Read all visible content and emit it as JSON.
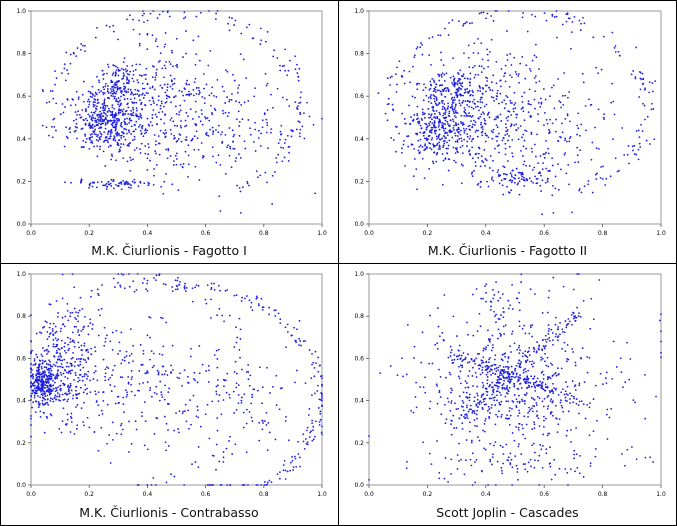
{
  "colors": {
    "points": "#1f1fe0",
    "border": "#000000",
    "plot_frame": "#9a9a9a",
    "background": "#ffffff"
  },
  "chart_data": [
    {
      "type": "scatter",
      "title": "M.K. Čiurlionis - Fagotto I",
      "xlim": [
        0,
        1
      ],
      "ylim": [
        0,
        1
      ],
      "x_ticks": [
        "0.0",
        "0.2",
        "0.4",
        "0.6",
        "0.8",
        "1.0"
      ],
      "y_ticks": [
        "0.0",
        "0.2",
        "0.4",
        "0.6",
        "0.8",
        "1.0"
      ],
      "grid": false,
      "series": [
        {
          "points": []
        }
      ],
      "clusters": [
        {
          "cx": 0.26,
          "cy": 0.48,
          "sx": 0.06,
          "sy": 0.07,
          "n": 420
        },
        {
          "cx": 0.3,
          "cy": 0.65,
          "sx": 0.05,
          "sy": 0.05,
          "n": 150
        },
        {
          "cx": 0.45,
          "cy": 0.55,
          "sx": 0.1,
          "sy": 0.16,
          "n": 330
        },
        {
          "cx": 0.28,
          "cy": 0.19,
          "sx": 0.06,
          "sy": 0.012,
          "n": 70
        },
        {
          "cx": 0.7,
          "cy": 0.45,
          "sx": 0.13,
          "sy": 0.15,
          "n": 170
        }
      ],
      "arcs": [
        {
          "cx": 0.5,
          "cy": 0.55,
          "rx": 0.42,
          "ry": 0.44,
          "t0": -60,
          "t1": 200,
          "n": 150,
          "noise": 0.02
        }
      ]
    },
    {
      "type": "scatter",
      "title": "M.K. Čiurlionis - Fagotto II",
      "xlim": [
        0,
        1
      ],
      "ylim": [
        0,
        1
      ],
      "x_ticks": [
        "0.0",
        "0.2",
        "0.4",
        "0.6",
        "0.8",
        "1.0"
      ],
      "y_ticks": [
        "0.0",
        "0.2",
        "0.4",
        "0.6",
        "0.8",
        "1.0"
      ],
      "grid": false,
      "series": [
        {
          "points": []
        }
      ],
      "clusters": [
        {
          "cx": 0.24,
          "cy": 0.45,
          "sx": 0.06,
          "sy": 0.09,
          "n": 380
        },
        {
          "cx": 0.28,
          "cy": 0.63,
          "sx": 0.05,
          "sy": 0.05,
          "n": 140
        },
        {
          "cx": 0.42,
          "cy": 0.55,
          "sx": 0.09,
          "sy": 0.15,
          "n": 320
        },
        {
          "cx": 0.48,
          "cy": 0.22,
          "sx": 0.07,
          "sy": 0.03,
          "n": 90
        },
        {
          "cx": 0.65,
          "cy": 0.45,
          "sx": 0.12,
          "sy": 0.15,
          "n": 150
        }
      ],
      "arcs": [
        {
          "cx": 0.52,
          "cy": 0.55,
          "rx": 0.44,
          "ry": 0.44,
          "t0": -70,
          "t1": 190,
          "n": 160,
          "noise": 0.02
        }
      ]
    },
    {
      "type": "scatter",
      "title": "M.K. Čiurlionis - Contrabasso",
      "xlim": [
        0,
        1
      ],
      "ylim": [
        0,
        1
      ],
      "x_ticks": [
        "0.0",
        "0.2",
        "0.4",
        "0.6",
        "0.8",
        "1.0"
      ],
      "y_ticks": [
        "0.0",
        "0.2",
        "0.4",
        "0.6",
        "0.8",
        "1.0"
      ],
      "grid": false,
      "series": [
        {
          "points": []
        }
      ],
      "clusters": [
        {
          "cx": 0.04,
          "cy": 0.48,
          "sx": 0.025,
          "sy": 0.06,
          "n": 300
        },
        {
          "cx": 0.12,
          "cy": 0.55,
          "sx": 0.06,
          "sy": 0.15,
          "n": 300
        },
        {
          "cx": 0.35,
          "cy": 0.5,
          "sx": 0.14,
          "sy": 0.16,
          "n": 240
        },
        {
          "cx": 0.7,
          "cy": 0.4,
          "sx": 0.15,
          "sy": 0.12,
          "n": 120
        }
      ],
      "arcs": [
        {
          "cx": 0.52,
          "cy": 0.42,
          "rx": 0.48,
          "ry": 0.52,
          "t0": -80,
          "t1": 100,
          "n": 170,
          "noise": 0.015
        },
        {
          "cx": 0.4,
          "cy": 0.5,
          "rx": 0.34,
          "ry": 0.48,
          "t0": -100,
          "t1": 160,
          "n": 100,
          "noise": 0.03
        }
      ]
    },
    {
      "type": "scatter",
      "title": "Scott Joplin - Cascades",
      "xlim": [
        0,
        1
      ],
      "ylim": [
        0,
        1
      ],
      "x_ticks": [
        "0.0",
        "0.2",
        "0.4",
        "0.6",
        "0.8",
        "1.0"
      ],
      "y_ticks": [
        "0.0",
        "0.2",
        "0.4",
        "0.6",
        "0.8",
        "1.0"
      ],
      "grid": false,
      "series": [
        {
          "points": []
        }
      ],
      "clusters": [
        {
          "cx": 0.5,
          "cy": 0.48,
          "sx": 0.12,
          "sy": 0.14,
          "n": 380
        },
        {
          "cx": 0.5,
          "cy": 0.5,
          "sx": 0.22,
          "sy": 0.22,
          "n": 300
        },
        {
          "cx": 0.45,
          "cy": 0.88,
          "sx": 0.05,
          "sy": 0.05,
          "n": 35
        },
        {
          "cx": 0.5,
          "cy": 0.1,
          "sx": 0.18,
          "sy": 0.04,
          "n": 80
        }
      ],
      "lines": [
        {
          "x0": 0.28,
          "y0": 0.62,
          "x1": 0.72,
          "y1": 0.4,
          "n": 130,
          "noise": 0.012
        },
        {
          "x0": 0.3,
          "y0": 0.3,
          "x1": 0.72,
          "y1": 0.82,
          "n": 140,
          "noise": 0.012
        }
      ]
    }
  ]
}
